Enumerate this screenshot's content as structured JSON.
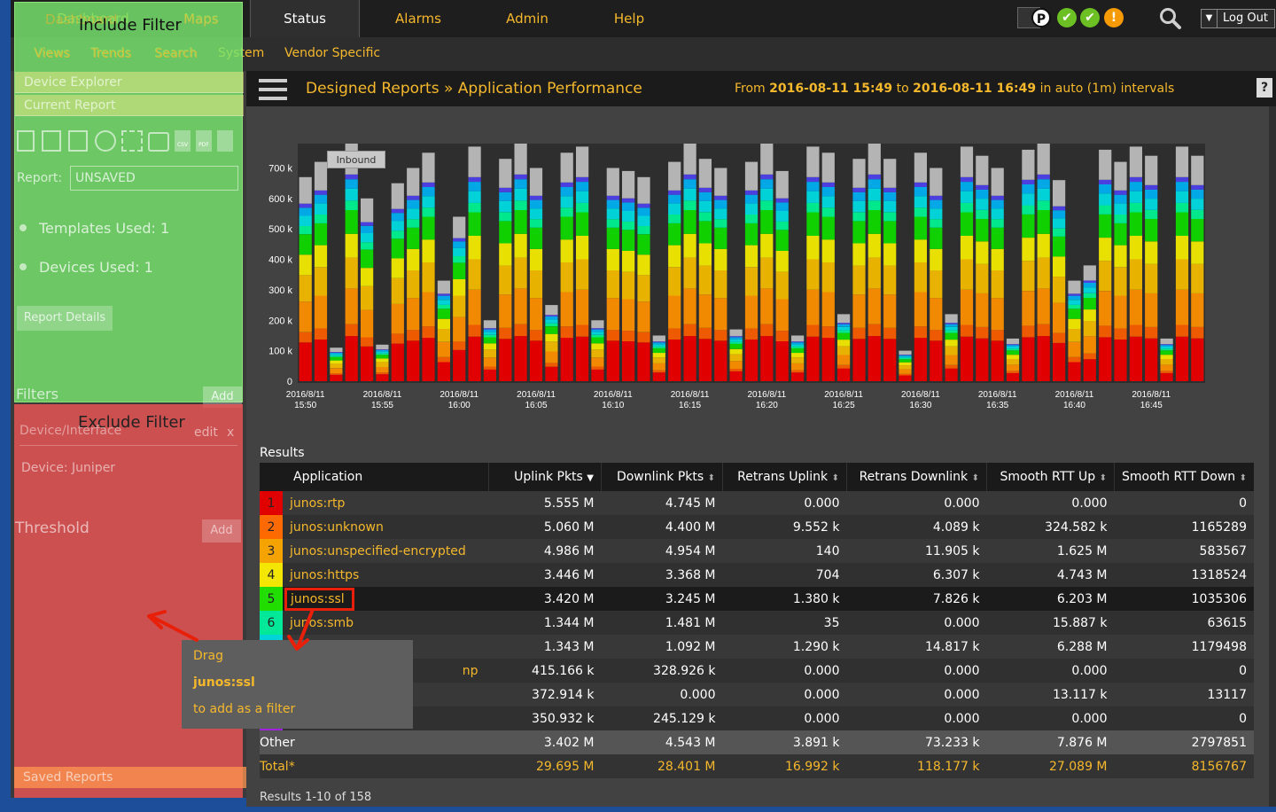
{
  "nav": {
    "items": [
      "Dashboard",
      "Maps",
      "Status",
      "Alarms",
      "Admin",
      "Help"
    ],
    "sub_items": [
      "Views",
      "Trends",
      "Search",
      "System",
      "Vendor Specific"
    ],
    "status_icons": [
      "P",
      "✔",
      "✔",
      "!"
    ],
    "logout_label": "Log Out"
  },
  "sidebar": {
    "device_explorer": "Device Explorer",
    "current_report": "Current Report",
    "toolbar_icons": [
      "trash-icon",
      "save-icon",
      "save-as-icon",
      "clock-icon",
      "grid-icon",
      "print-icon",
      "csv-icon",
      "pdf-icon",
      "email-icon"
    ],
    "csv_label": "CSV",
    "pdf_label": "PDF",
    "report_label": "Report:",
    "report_value": "UNSAVED",
    "templates_used": "Templates Used: 1",
    "devices_used": "Devices Used: 1",
    "report_details": "Report Details",
    "filters_label": "Filters",
    "add_label": "Add",
    "filter_item": "Device/Interface",
    "edit_label": "edit",
    "remove_label": "x",
    "device_juniper": "Device: Juniper",
    "threshold_label": "Threshold",
    "saved_reports": "Saved Reports"
  },
  "overlays": {
    "include_filter": "Include Filter",
    "exclude_filter": "Exclude Filter"
  },
  "header": {
    "breadcrumb": "Designed Reports » Application Performance",
    "from_label": "From",
    "start": "2016-08-11 15:49",
    "to_label": "to",
    "end": "2016-08-11 16:49",
    "interval": "in auto (1m) intervals",
    "help": "?"
  },
  "chart_data": {
    "type": "bar",
    "stacked": true,
    "tooltip_label": "Inbound",
    "ylim": [
      0,
      780000
    ],
    "y_ticks": [
      "0",
      "100 k",
      "200 k",
      "300 k",
      "400 k",
      "500 k",
      "600 k",
      "700 k"
    ],
    "x_ticks": [
      "2016/8/11 15:50",
      "2016/8/11 15:55",
      "2016/8/11 16:00",
      "2016/8/11 16:05",
      "2016/8/11 16:10",
      "2016/8/11 16:15",
      "2016/8/11 16:20",
      "2016/8/11 16:25",
      "2016/8/11 16:30",
      "2016/8/11 16:35",
      "2016/8/11 16:40",
      "2016/8/11 16:45"
    ],
    "totals": [
      670000,
      720000,
      110000,
      780000,
      600000,
      120000,
      650000,
      700000,
      750000,
      330000,
      540000,
      770000,
      200000,
      730000,
      780000,
      700000,
      250000,
      750000,
      770000,
      200000,
      700000,
      690000,
      670000,
      150000,
      720000,
      780000,
      730000,
      700000,
      170000,
      720000,
      780000,
      690000,
      150000,
      770000,
      750000,
      220000,
      730000,
      780000,
      730000,
      100000,
      750000,
      700000,
      220000,
      770000,
      740000,
      700000,
      140000,
      760000,
      780000,
      660000,
      330000,
      380000,
      760000,
      720000,
      770000,
      740000,
      140000,
      770000,
      740000
    ],
    "layers": [
      {
        "color": "#e00000",
        "fraction": 0.19
      },
      {
        "color": "#ee5a00",
        "fraction": 0.05
      },
      {
        "color": "#f18a00",
        "fraction": 0.15
      },
      {
        "color": "#e8b200",
        "fraction": 0.13
      },
      {
        "color": "#e8e000",
        "fraction": 0.1
      },
      {
        "color": "#10d000",
        "fraction": 0.1
      },
      {
        "color": "#00e88c",
        "fraction": 0.04
      },
      {
        "color": "#00d2d8",
        "fraction": 0.05
      },
      {
        "color": "#00a8e6",
        "fraction": 0.04
      },
      {
        "color": "#4c3fe0",
        "fraction": 0.02
      },
      {
        "color": "#b4b4b4",
        "fraction": 0.13
      }
    ]
  },
  "results": {
    "title": "Results",
    "columns": [
      "Application",
      "Uplink Pkts",
      "Downlink Pkts",
      "Retrans Uplink",
      "Retrans Downlink",
      "Smooth RTT Up",
      "Smooth RTT Down"
    ],
    "rows": [
      {
        "rank": "1",
        "color": "#e00000",
        "app": "junos:rtp",
        "v": [
          "5.555 M",
          "4.745 M",
          "0.000",
          "0.000",
          "0.000",
          "0"
        ]
      },
      {
        "rank": "2",
        "color": "#ff6a00",
        "app": "junos:unknown",
        "v": [
          "5.060 M",
          "4.400 M",
          "9.552 k",
          "4.089 k",
          "324.582 k",
          "1165289"
        ]
      },
      {
        "rank": "3",
        "color": "#f5a300",
        "app": "junos:unspecified-encrypted",
        "v": [
          "4.986 M",
          "4.954 M",
          "140",
          "11.905 k",
          "1.625 M",
          "583567"
        ]
      },
      {
        "rank": "4",
        "color": "#f3e600",
        "app": "junos:https",
        "v": [
          "3.446 M",
          "3.368 M",
          "704",
          "6.307 k",
          "4.743 M",
          "1318524"
        ]
      },
      {
        "rank": "5",
        "color": "#22dd00",
        "app": "junos:ssl",
        "v": [
          "3.420 M",
          "3.245 M",
          "1.380 k",
          "7.826 k",
          "6.203 M",
          "1035306"
        ]
      },
      {
        "rank": "6",
        "color": "#00e898",
        "app": "junos:smb",
        "v": [
          "1.344 M",
          "1.481 M",
          "35",
          "0.000",
          "15.887 k",
          "63615"
        ]
      },
      {
        "rank": "",
        "color": "#00d2d8",
        "app": "",
        "v": [
          "1.343 M",
          "1.092 M",
          "1.290 k",
          "14.817 k",
          "6.288 M",
          "1179498"
        ]
      },
      {
        "rank": "",
        "color": "#00a8e6",
        "app": "np",
        "v": [
          "415.166 k",
          "328.926 k",
          "0.000",
          "0.000",
          "0.000",
          "0"
        ]
      },
      {
        "rank": "",
        "color": "#4c3fe0",
        "app": "",
        "v": [
          "372.914 k",
          "0.000",
          "0.000",
          "0.000",
          "13.117 k",
          "13117"
        ]
      },
      {
        "rank": "",
        "color": "#a020e0",
        "app": "",
        "v": [
          "350.932 k",
          "245.129 k",
          "0.000",
          "0.000",
          "0.000",
          "0"
        ]
      }
    ],
    "other": {
      "app": "Other",
      "v": [
        "3.402 M",
        "4.543 M",
        "3.891 k",
        "73.233 k",
        "7.876 M",
        "2797851"
      ]
    },
    "total": {
      "app": "Total*",
      "v": [
        "29.695 M",
        "28.401 M",
        "16.992 k",
        "118.177 k",
        "27.089 M",
        "8156767"
      ]
    },
    "footer": "Results 1-10 of 158"
  },
  "tooltip": {
    "line1": "Drag",
    "line2": "junos:ssl",
    "line3": "to add as a filter"
  },
  "colors": {
    "accent": "#f5b82c",
    "include": "#78e66e",
    "exclude": "#e65555",
    "annotation": "#e8200a"
  }
}
